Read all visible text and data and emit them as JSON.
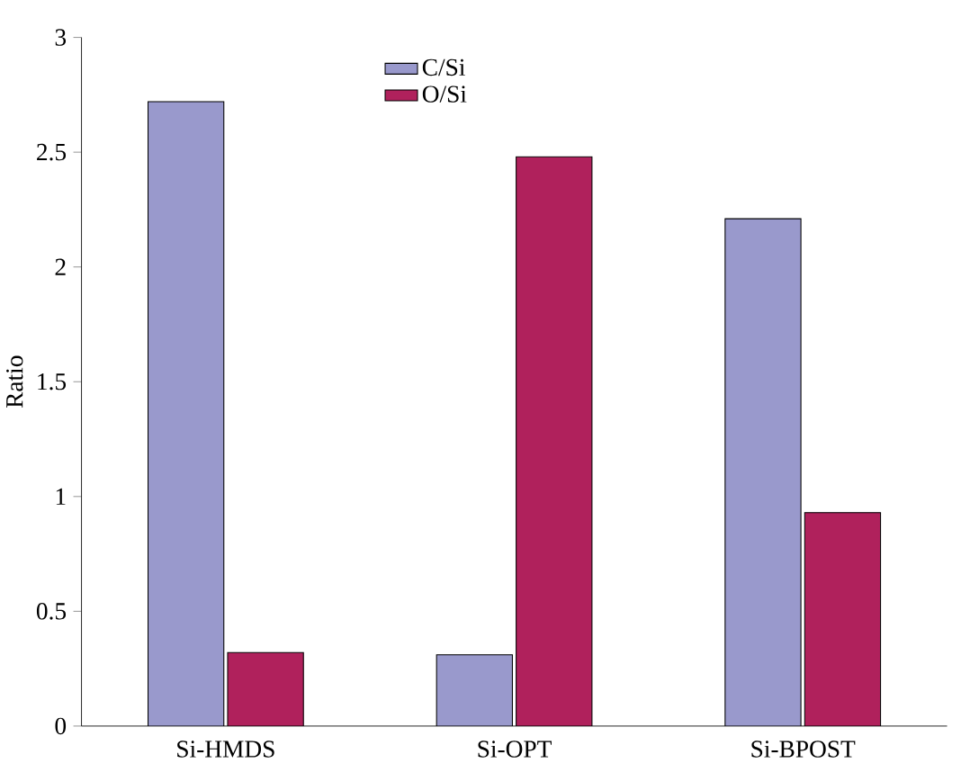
{
  "chart_data": {
    "type": "bar",
    "ylabel": "Ratio",
    "categories": [
      "Si-HMDS",
      "Si-OPT",
      "Si-BPOST"
    ],
    "series": [
      {
        "name": "C/Si",
        "color": "#9999cc",
        "values": [
          2.72,
          0.31,
          2.21
        ]
      },
      {
        "name": "O/Si",
        "color": "#b0215c",
        "values": [
          0.32,
          2.48,
          0.93
        ]
      }
    ],
    "ylim": [
      0,
      3
    ],
    "yticks": [
      0,
      0.5,
      1,
      1.5,
      2,
      2.5,
      3
    ],
    "legend": "top",
    "grid": false
  }
}
